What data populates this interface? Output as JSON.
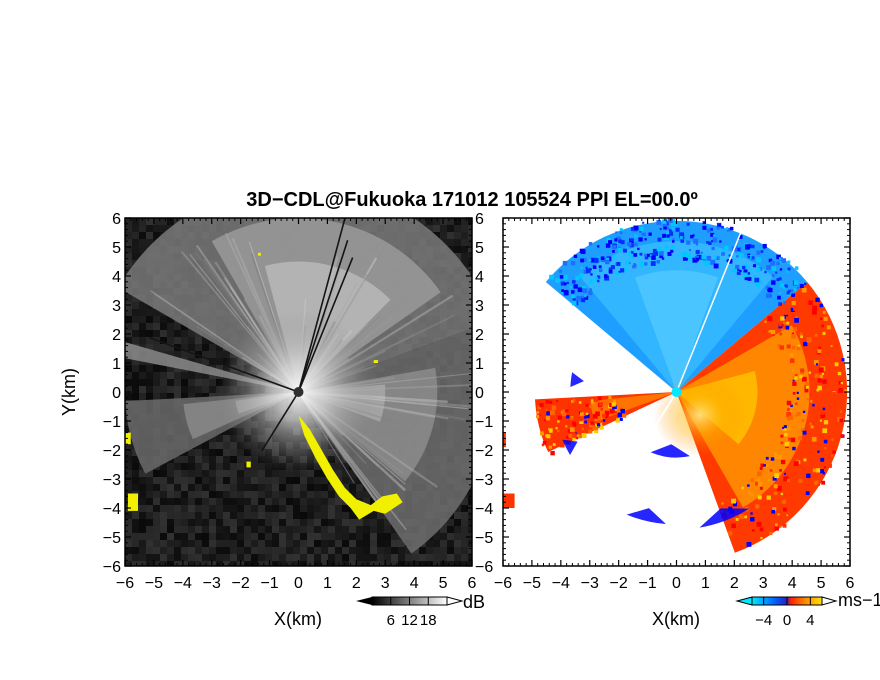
{
  "title": "3D−CDL@Fukuoka 171012 105524 PPI EL=00.0º",
  "colors": {
    "background": "#ffffff",
    "axis": "#000000",
    "overlay_yellow": "#f0f000",
    "doppler_blue": "#0000ff",
    "doppler_cyan": "#00e0ff",
    "doppler_red": "#ff1e00",
    "doppler_orange": "#ff9a00",
    "doppler_yellow": "#ffe000",
    "radar_center": "#00e8ff"
  },
  "chart_data": [
    {
      "type": "heatmap",
      "name": "snr-panel",
      "xlabel": "X(km)",
      "ylabel": "Y(km)",
      "xlim": [
        -6,
        6
      ],
      "ylim": [
        -6,
        6
      ],
      "x_ticks": [
        "−6",
        "−5",
        "−4",
        "−3",
        "−2",
        "−1",
        "0",
        "1",
        "2",
        "3",
        "4",
        "5",
        "6"
      ],
      "y_ticks": [
        "6",
        "5",
        "4",
        "3",
        "2",
        "1",
        "0",
        "−1",
        "−2",
        "−3",
        "−4",
        "−5",
        "−6"
      ],
      "colorbar": {
        "unit": "dB",
        "ticks": [
          "6",
          "12",
          "18"
        ],
        "tick_values": [
          6,
          12,
          18
        ],
        "range": [
          0,
          24
        ],
        "colormap": "gray"
      },
      "overlay": "yellow"
    },
    {
      "type": "heatmap",
      "name": "doppler-panel",
      "xlabel": "X(km)",
      "xlim": [
        -6,
        6
      ],
      "ylim": [
        -6,
        6
      ],
      "x_ticks": [
        "−6",
        "−5",
        "−4",
        "−3",
        "−2",
        "−1",
        "0",
        "1",
        "2",
        "3",
        "4",
        "5",
        "6"
      ],
      "y_ticks": [
        "6",
        "5",
        "4",
        "3",
        "2",
        "1",
        "0",
        "−1",
        "−2",
        "−3",
        "−4",
        "−5",
        "−6"
      ],
      "colorbar": {
        "unit": "ms−1",
        "ticks": [
          "−4",
          "0",
          "4"
        ],
        "tick_values": [
          -4,
          0,
          4
        ],
        "range": [
          -6,
          6
        ],
        "colormap": "cyan-blue-red-yellow"
      }
    }
  ]
}
